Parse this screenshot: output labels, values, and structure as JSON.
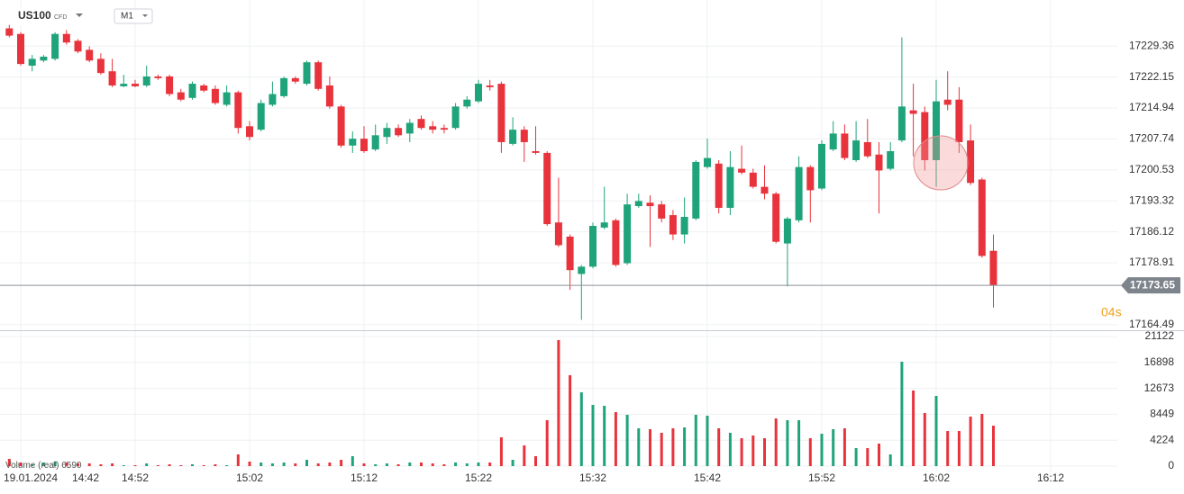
{
  "symbol": "US100",
  "symbol_tag": "CFD",
  "timeframe": "M1",
  "countdown": "04s",
  "chart_data": [
    {
      "type": "candlestick",
      "up_color": "#1fa37a",
      "down_color": "#e8333c",
      "open": [
        17233.5,
        17232.2,
        17224.8,
        17226.0,
        17226.4,
        17232.2,
        17230.6,
        17228.5,
        17226.4,
        17223.5,
        17220.0,
        17220.6,
        17220.2,
        17222.3,
        17222.3,
        17218.6,
        17217.3,
        17220.2,
        17219.4,
        17215.7,
        17218.6,
        17210.7,
        17209.9,
        17215.7,
        17217.7,
        17221.9,
        17220.6,
        17225.6,
        17220.2,
        17215.3,
        17206.2,
        17207.8,
        17205.3,
        17208.2,
        17210.3,
        17209.0,
        17212.4,
        17210.7,
        17210.3,
        17210.3,
        17215.3,
        17216.5,
        17220.2,
        17220.6,
        17206.6,
        17209.9,
        17204.9,
        17204.5,
        17188.3,
        17185.0,
        17176.3,
        17178.0,
        17187.1,
        17188.8,
        17178.8,
        17192.1,
        17192.9,
        17192.5,
        17190.0,
        17185.5,
        17189.2,
        17201.2,
        17202.0,
        17191.7,
        17200.8,
        17199.9,
        17196.6,
        17195.0,
        17183.4,
        17188.8,
        17201.2,
        17196.2,
        17205.3,
        17209.0,
        17202.8,
        17207.0,
        17204.1,
        17200.8,
        17207.4,
        17214.4,
        17214.0,
        17202.8,
        17216.9,
        17216.9,
        17207.4,
        17198.3,
        17181.7
      ],
      "high": [
        17234.3,
        17232.6,
        17227.3,
        17227.3,
        17232.6,
        17233.1,
        17231.0,
        17229.3,
        17227.7,
        17226.4,
        17222.7,
        17221.5,
        17224.8,
        17222.7,
        17222.7,
        17219.4,
        17221.1,
        17220.6,
        17220.2,
        17220.2,
        17219.0,
        17211.9,
        17216.9,
        17221.1,
        17222.3,
        17222.3,
        17226.0,
        17226.0,
        17222.3,
        17215.7,
        17209.5,
        17210.7,
        17211.1,
        17211.5,
        17211.1,
        17212.4,
        17213.2,
        17211.9,
        17211.1,
        17216.1,
        17217.7,
        17221.5,
        17221.5,
        17221.1,
        17212.8,
        17210.7,
        17210.7,
        17204.9,
        17198.7,
        17185.5,
        17178.4,
        17188.3,
        17196.6,
        17189.2,
        17195.0,
        17195.0,
        17194.6,
        17193.3,
        17191.2,
        17194.1,
        17202.8,
        17207.8,
        17202.8,
        17204.9,
        17206.2,
        17200.8,
        17201.6,
        17195.4,
        17189.6,
        17203.7,
        17201.6,
        17207.4,
        17211.9,
        17211.1,
        17211.9,
        17212.4,
        17207.0,
        17207.0,
        17231.4,
        17220.6,
        17215.3,
        17221.5,
        17223.5,
        17219.8,
        17211.1,
        17198.7,
        17185.5
      ],
      "low": [
        17231.4,
        17224.8,
        17223.5,
        17225.6,
        17226.0,
        17229.7,
        17227.7,
        17225.6,
        17222.7,
        17219.8,
        17219.8,
        17219.8,
        17219.8,
        17221.5,
        17217.7,
        17216.5,
        17216.9,
        17218.6,
        17215.7,
        17215.3,
        17209.0,
        17207.4,
        17209.5,
        17215.3,
        17217.3,
        17220.6,
        17220.2,
        17219.0,
        17214.8,
        17205.7,
        17204.5,
        17204.5,
        17204.9,
        17206.6,
        17208.2,
        17207.0,
        17209.9,
        17209.0,
        17209.0,
        17209.9,
        17214.8,
        17216.1,
        17219.0,
        17204.5,
        17206.2,
        17202.4,
        17204.1,
        17187.5,
        17182.6,
        17172.6,
        17165.6,
        17177.6,
        17186.7,
        17178.0,
        17178.4,
        17191.7,
        17182.6,
        17188.3,
        17184.2,
        17183.4,
        17188.8,
        17200.8,
        17190.4,
        17190.0,
        17199.5,
        17196.2,
        17193.7,
        17183.4,
        17173.4,
        17188.3,
        17188.3,
        17195.8,
        17204.9,
        17202.8,
        17202.4,
        17203.3,
        17190.4,
        17200.4,
        17207.0,
        17203.7,
        17200.4,
        17196.6,
        17214.4,
        17204.5,
        17197.0,
        17180.1,
        17168.5
      ],
      "close": [
        17231.8,
        17225.2,
        17226.4,
        17226.9,
        17232.2,
        17230.2,
        17228.1,
        17226.0,
        17223.1,
        17220.2,
        17220.6,
        17220.0,
        17222.3,
        17221.9,
        17218.2,
        17216.9,
        17220.6,
        17219.0,
        17216.1,
        17218.6,
        17210.3,
        17208.2,
        17216.1,
        17218.2,
        17221.9,
        17221.1,
        17225.6,
        17219.4,
        17215.3,
        17206.2,
        17207.8,
        17204.9,
        17208.6,
        17210.3,
        17208.6,
        17211.5,
        17210.3,
        17209.9,
        17209.9,
        17215.3,
        17216.9,
        17220.6,
        17219.8,
        17207.0,
        17209.9,
        17207.0,
        17204.5,
        17187.9,
        17183.0,
        17177.2,
        17178.0,
        17187.5,
        17188.3,
        17178.4,
        17192.5,
        17193.3,
        17192.1,
        17189.2,
        17185.5,
        17189.6,
        17202.4,
        17203.3,
        17191.7,
        17201.2,
        17199.9,
        17196.6,
        17195.0,
        17183.8,
        17189.2,
        17201.2,
        17195.8,
        17206.6,
        17209.0,
        17203.3,
        17207.4,
        17203.7,
        17200.4,
        17204.9,
        17215.3,
        17213.6,
        17202.8,
        17216.5,
        17215.7,
        17207.0,
        17197.5,
        17180.5,
        17173.65
      ],
      "last_price": 17173.65,
      "ylim": [
        17163.2,
        17240.1
      ],
      "yticks": [
        17164.49,
        17178.91,
        17186.12,
        17193.32,
        17200.53,
        17207.74,
        17214.94,
        17222.15,
        17229.36
      ],
      "date": "19.01.2024",
      "xticks": [
        {
          "value": 1,
          "label": "14:42"
        },
        {
          "value": 11,
          "label": "14:52"
        },
        {
          "value": 21,
          "label": "15:02"
        },
        {
          "value": 31,
          "label": "15:12"
        },
        {
          "value": 41,
          "label": "15:22"
        },
        {
          "value": 51,
          "label": "15:32"
        },
        {
          "value": 61,
          "label": "15:42"
        },
        {
          "value": 71,
          "label": "15:52"
        },
        {
          "value": 81,
          "label": "16:02"
        },
        {
          "value": 91,
          "label": "16:12"
        }
      ],
      "grid": true
    },
    {
      "type": "volume",
      "label": "Volume (real)",
      "values": [
        1174,
        587,
        293,
        587,
        733,
        587,
        440,
        440,
        293,
        440,
        147,
        147,
        440,
        147,
        293,
        147,
        293,
        147,
        293,
        147,
        1907,
        733,
        587,
        440,
        587,
        440,
        1027,
        440,
        587,
        1027,
        1614,
        440,
        293,
        440,
        293,
        587,
        587,
        440,
        293,
        587,
        440,
        587,
        587,
        4694,
        1027,
        3374,
        1614,
        7482,
        20538,
        14817,
        12029,
        9976,
        9829,
        8802,
        8362,
        6161,
        6015,
        5428,
        6161,
        6308,
        8362,
        8215,
        6161,
        5428,
        4548,
        4988,
        4548,
        7775,
        7482,
        7482,
        4548,
        5281,
        6015,
        6161,
        2934,
        2934,
        3668,
        1907,
        17017,
        12323,
        8655,
        11443,
        5721,
        5721,
        8069,
        8509,
        6590
      ],
      "ylim": [
        0,
        21122
      ],
      "yticks": [
        0,
        4224,
        8449,
        12673,
        16898,
        21122
      ],
      "grid": true
    }
  ]
}
